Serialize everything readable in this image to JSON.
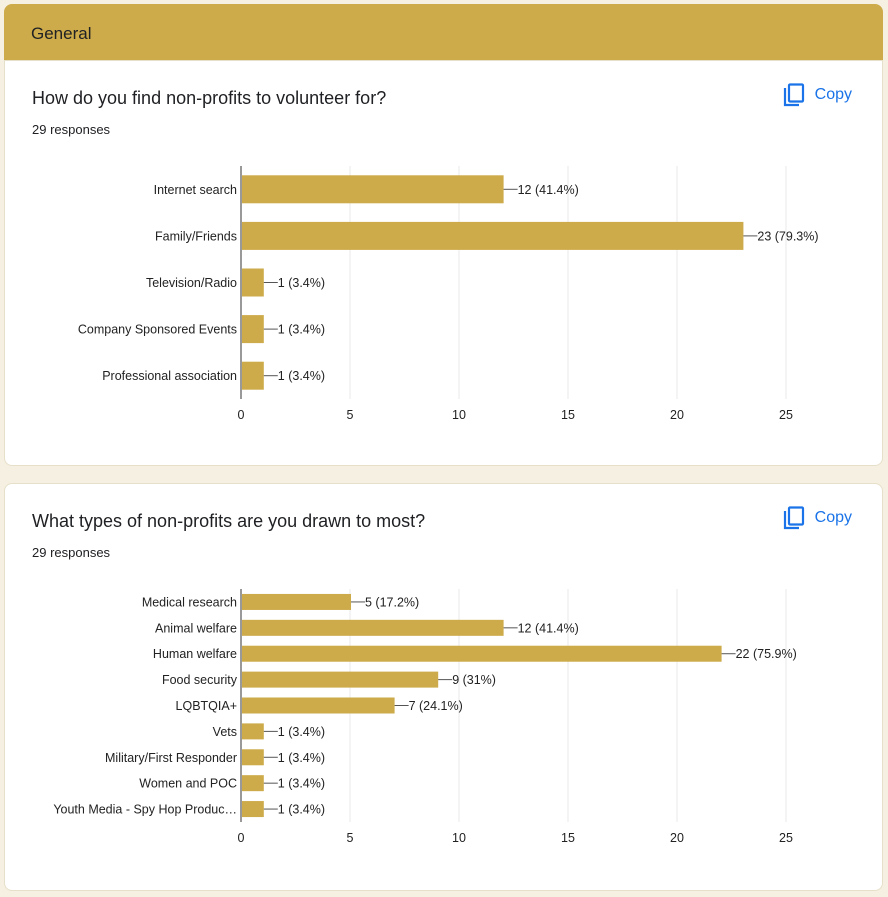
{
  "section": {
    "title": "General"
  },
  "questions": [
    {
      "title": "How do you find non-profits to volunteer for?",
      "responses": "29 responses",
      "copy_label": "Copy"
    },
    {
      "title": "What types of non-profits are you drawn to most?",
      "responses": "29 responses",
      "copy_label": "Copy"
    }
  ],
  "colors": {
    "bar": "#cdab4a",
    "header": "#cdab4a",
    "link": "#1a73e8"
  },
  "chart_data": [
    {
      "type": "bar",
      "orientation": "horizontal",
      "categories": [
        "Internet search",
        "Family/Friends",
        "Television/Radio",
        "Company Sponsored Events",
        "Professional association"
      ],
      "values": [
        12,
        23,
        1,
        1,
        1
      ],
      "data_labels": [
        "12 (41.4%)",
        "23 (79.3%)",
        "1 (3.4%)",
        "1 (3.4%)",
        "1 (3.4%)"
      ],
      "xlim": [
        0,
        25
      ],
      "xticks": [
        0,
        5,
        10,
        15,
        20,
        25
      ],
      "grid": true
    },
    {
      "type": "bar",
      "orientation": "horizontal",
      "categories": [
        "Medical research",
        "Animal welfare",
        "Human welfare",
        "Food security",
        "LQBTQIA+",
        "Vets",
        "Military/First Responder",
        "Women and POC",
        "Youth Media - Spy Hop Produc…"
      ],
      "values": [
        5,
        12,
        22,
        9,
        7,
        1,
        1,
        1,
        1
      ],
      "data_labels": [
        "5 (17.2%)",
        "12 (41.4%)",
        "22 (75.9%)",
        "9 (31%)",
        "7 (24.1%)",
        "1 (3.4%)",
        "1 (3.4%)",
        "1 (3.4%)",
        "1 (3.4%)"
      ],
      "xlim": [
        0,
        25
      ],
      "xticks": [
        0,
        5,
        10,
        15,
        20,
        25
      ],
      "grid": true
    }
  ]
}
